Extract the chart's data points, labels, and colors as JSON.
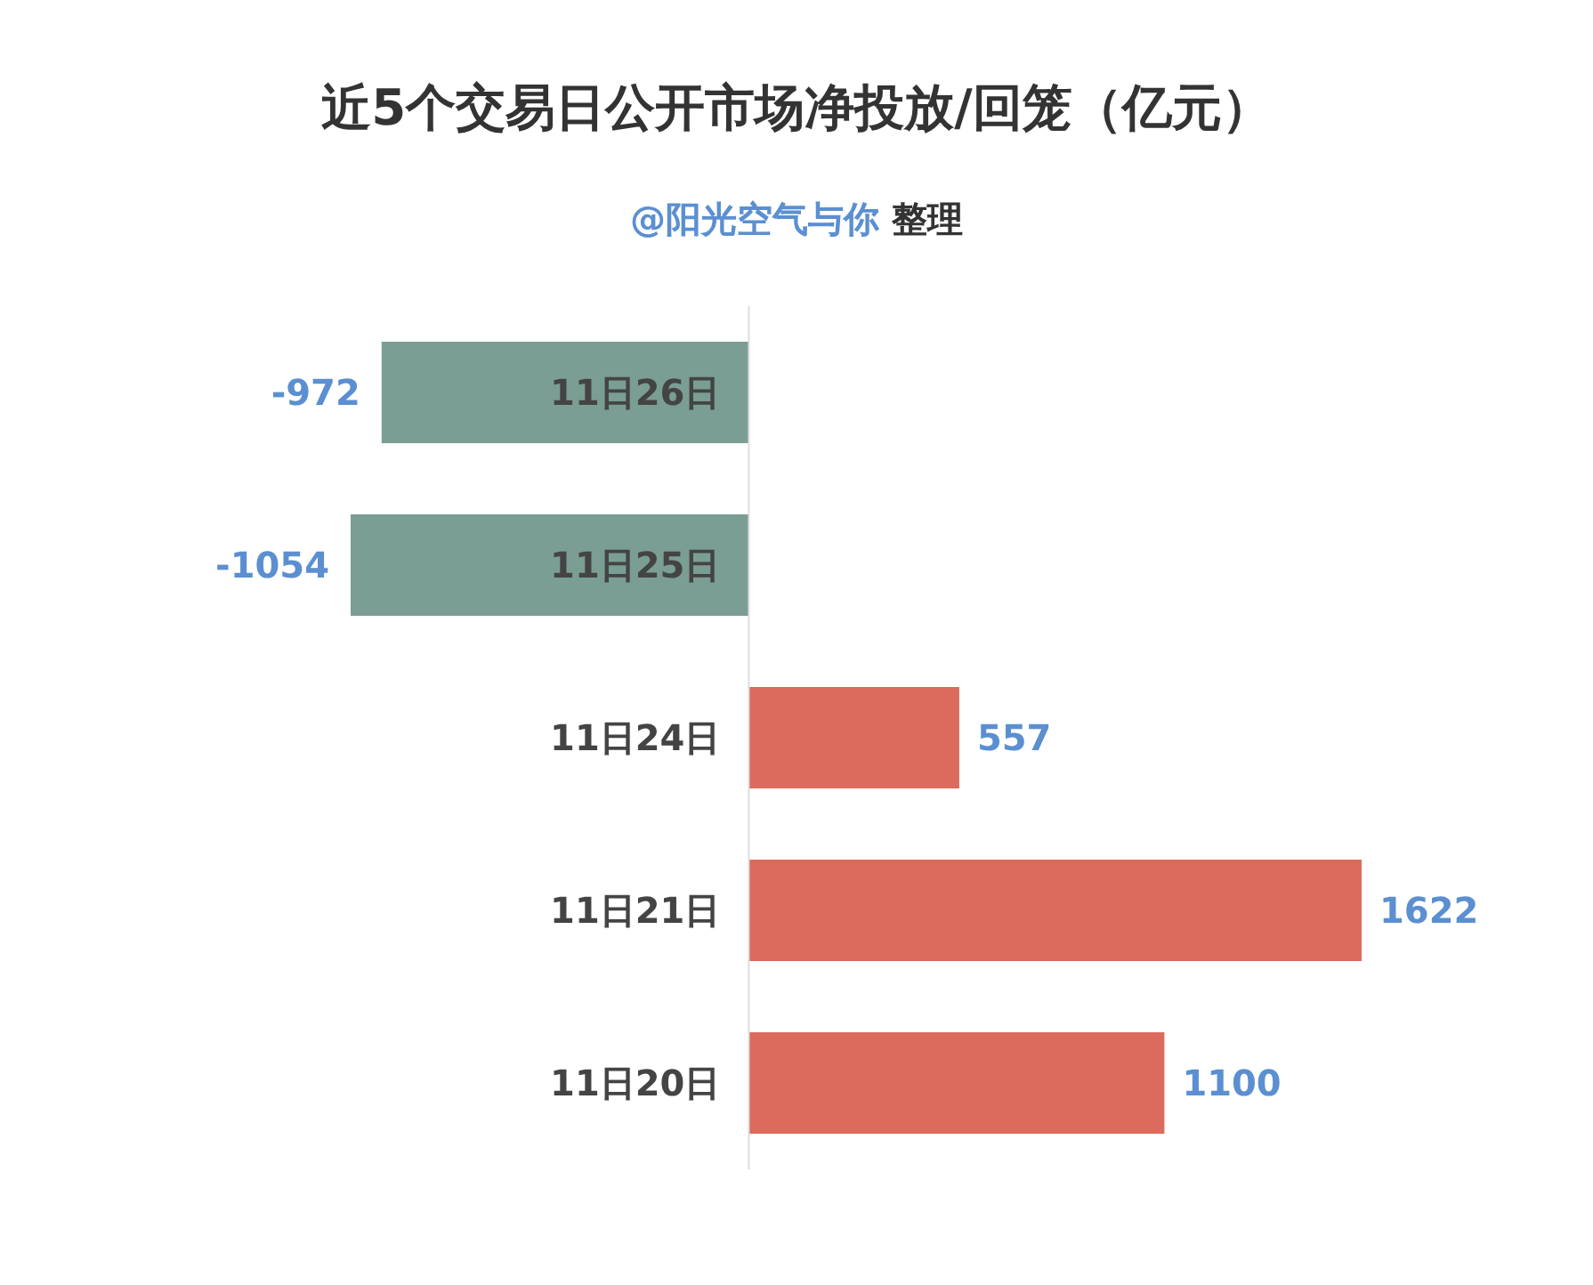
{
  "chart_data": {
    "type": "bar",
    "orientation": "horizontal",
    "title": "近5个交易日公开市场净投放/回笼（亿元）",
    "subtitle": "@阳光空气与你 整理",
    "categories": [
      "11日26日",
      "11日25日",
      "11日24日",
      "11日21日",
      "11日20日"
    ],
    "values": [
      -972,
      -1054,
      557,
      1622,
      1100
    ],
    "colors": [
      "#7a9e94",
      "#7a9e94",
      "#dc6b5d",
      "#dc6b5d",
      "#dc6b5d"
    ],
    "tick_labels": "y",
    "data_labels": true
  }
}
